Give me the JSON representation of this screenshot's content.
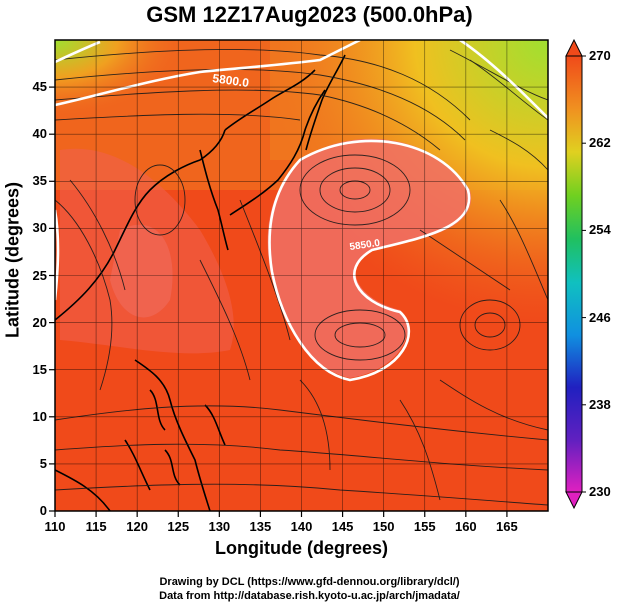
{
  "title": "GSM 12Z17Aug2023 (500.0hPa)",
  "xlabel": "Longitude (degrees)",
  "ylabel": "Latitude  (degrees)",
  "credits": {
    "line1": "Drawing by DCL (https://www.gfd-dennou.org/library/dcl/)",
    "line2": "Data from http://database.rish.kyoto-u.ac.jp/arch/jmadata/"
  },
  "chart_data": {
    "type": "heatmap",
    "x_range": [
      110,
      170
    ],
    "y_range": [
      0,
      50
    ],
    "x_ticks": [
      110,
      115,
      120,
      125,
      130,
      135,
      140,
      145,
      150,
      155,
      160,
      165
    ],
    "y_ticks": [
      0,
      5,
      10,
      15,
      20,
      25,
      30,
      35,
      40,
      45
    ],
    "colorbar": {
      "min": 230,
      "max": 270,
      "ticks": [
        230,
        238,
        246,
        254,
        262,
        270
      ]
    },
    "contour_labels": [
      "5800.0",
      "5850.0"
    ],
    "colors": {
      "background_field": "#f04a1a",
      "high_region": "#f07060",
      "contour": "#ffffff",
      "streamline": "#1a1a1a",
      "coast": "#000000"
    }
  }
}
